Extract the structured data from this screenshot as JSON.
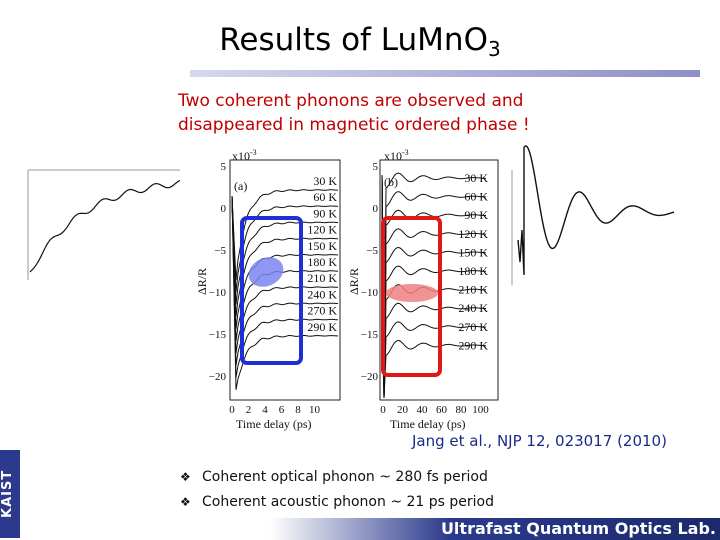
{
  "slide": {
    "title": "Results of LuMnO",
    "title_sub": "3",
    "intro_line1": "Two coherent phonons are observed and",
    "intro_line2": "disappeared in magnetic ordered phase !",
    "citation": "Jang et al., NJP 12, 023017 (2010)",
    "bullets": [
      "Coherent optical phonon ~ 280 fs period",
      "Coherent acoustic phonon ~ 21 ps period"
    ],
    "side_brand": "KAIST",
    "footer": "Ultrafast Quantum Optics Lab."
  },
  "figure": {
    "panel_a": {
      "label": "(a)",
      "scale": "x10",
      "scale_exp": "-3",
      "ylabel": "ΔR/R",
      "xlabel": "Time delay (ps)",
      "y_ticks": [
        "5",
        "0",
        "−5",
        "−10",
        "−15",
        "−20"
      ],
      "x_ticks": [
        "0",
        "2",
        "4",
        "6",
        "8",
        "10"
      ],
      "temperatures": [
        "30 K",
        "60 K",
        "90 K",
        "120 K",
        "150 K",
        "180 K",
        "210 K",
        "240 K",
        "270 K",
        "290 K"
      ]
    },
    "panel_b": {
      "label": "(b)",
      "scale": "x10",
      "scale_exp": "-3",
      "ylabel": "ΔR/R",
      "xlabel": "Time delay (ps)",
      "y_ticks": [
        "5",
        "0",
        "−5",
        "−10",
        "−15",
        "−20"
      ],
      "x_ticks": [
        "0",
        "20",
        "40",
        "60",
        "80",
        "100"
      ],
      "temperatures": [
        "30 K",
        "60 K",
        "90 K",
        "120 K",
        "150 K",
        "180 K",
        "210 K",
        "240 K",
        "270 K",
        "290 K"
      ]
    },
    "colors": {
      "blue_box": "#1f2fd6",
      "red_box": "#e01818",
      "blue_ellipse": "#7a86f0",
      "red_ellipse": "#f08080"
    }
  }
}
